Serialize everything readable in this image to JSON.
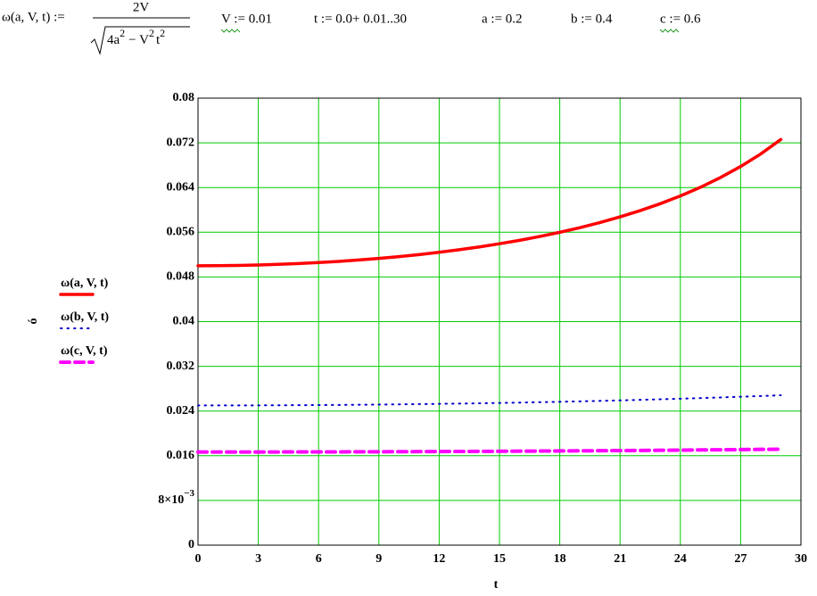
{
  "worksheet": {
    "definition_lhs": "ω(a, V, t) :=",
    "numerator": "2V",
    "radicand_a": "4a",
    "radicand_a_exp": "2",
    "radicand_v": "− V",
    "radicand_v_exp": "2",
    "radicand_t": "t",
    "radicand_t_exp": "2",
    "assignments": [
      "V := 0.01",
      "t := 0.0+ 0.01..30",
      "a := 0.2",
      "b := 0.4",
      "c := 0.6"
    ]
  },
  "chart_data": {
    "type": "line",
    "x_label": "t",
    "y_label": "ó",
    "x": [
      0,
      1,
      2,
      3,
      4,
      5,
      6,
      7,
      8,
      9,
      10,
      11,
      12,
      13,
      14,
      15,
      16,
      17,
      18,
      19,
      20,
      21,
      22,
      23,
      24,
      25,
      26,
      27,
      28,
      29
    ],
    "series": [
      {
        "name": "ω(a, V, t)",
        "color": "#ff0000",
        "style": "solid",
        "values": [
          0.05,
          0.05002,
          0.05006,
          0.05014,
          0.05025,
          0.0504,
          0.05057,
          0.05078,
          0.05103,
          0.05132,
          0.05164,
          0.052,
          0.05241,
          0.05287,
          0.05338,
          0.05394,
          0.05455,
          0.05524,
          0.05599,
          0.05682,
          0.05774,
          0.05875,
          0.05987,
          0.06111,
          0.0625,
          0.06405,
          0.0658,
          0.06777,
          0.07001,
          0.0726
        ]
      },
      {
        "name": "ω(b, V, t)",
        "color": "#0000cc",
        "style": "dotted",
        "values": [
          0.025,
          0.025002,
          0.025008,
          0.025018,
          0.025031,
          0.025049,
          0.025071,
          0.025096,
          0.025126,
          0.02516,
          0.025198,
          0.02524,
          0.025286,
          0.025337,
          0.025392,
          0.025451,
          0.025516,
          0.025584,
          0.025658,
          0.025736,
          0.02582,
          0.025909,
          0.026003,
          0.026102,
          0.026207,
          0.026318,
          0.026435,
          0.026558,
          0.026688,
          0.026824
        ]
      },
      {
        "name": "ω(c, V, t)",
        "color": "#ff00ff",
        "style": "dashed",
        "values": [
          0.016667,
          0.016667,
          0.016669,
          0.016672,
          0.016676,
          0.016681,
          0.016688,
          0.016695,
          0.016704,
          0.016714,
          0.016725,
          0.016737,
          0.016751,
          0.016766,
          0.016782,
          0.016799,
          0.016817,
          0.016837,
          0.016858,
          0.016879,
          0.016903,
          0.016927,
          0.016952,
          0.016979,
          0.01701,
          0.017041,
          0.017072,
          0.017105,
          0.01714,
          0.017176
        ]
      }
    ],
    "xlim": [
      0,
      30
    ],
    "xticks": [
      0,
      3,
      6,
      9,
      12,
      15,
      18,
      21,
      24,
      27,
      30
    ],
    "ylim": [
      0,
      0.08
    ],
    "yticks": [
      0,
      {
        "value": 0.008,
        "label": "8×10",
        "exponent": "−3"
      },
      0.016,
      0.024,
      0.032,
      0.04,
      0.048,
      0.056,
      0.064,
      0.072,
      0.08
    ],
    "grid": true,
    "grid_color": "#00cc00"
  }
}
